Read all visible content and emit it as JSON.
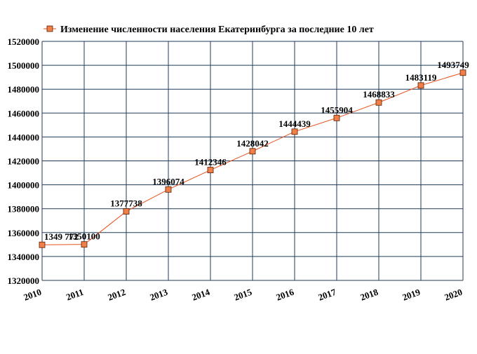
{
  "chart_data": {
    "type": "line",
    "legend": {
      "position": "top-left",
      "entries": [
        "Изменение численности населения Екатеринбурга за последние 10 лет"
      ]
    },
    "x": [
      "2010",
      "2011",
      "2012",
      "2013",
      "2014",
      "2015",
      "2016",
      "2017",
      "2018",
      "2019",
      "2020"
    ],
    "series": [
      {
        "name": "Изменение численности населения Екатеринбурга за последние 10 лет",
        "values": [
          1349772,
          1350100,
          1377738,
          1396074,
          1412346,
          1428042,
          1444439,
          1455904,
          1468833,
          1483119,
          1493749
        ],
        "labels": [
          "1349 772",
          "1350100",
          "1377738",
          "1396074",
          "1412346",
          "1428042",
          "1444439",
          "1455904",
          "1468833",
          "1483119",
          "1493749"
        ],
        "color": "#e8501c",
        "marker_fill": "#f07f4a",
        "marker_stroke": "#5a1e00"
      }
    ],
    "ylim": [
      1320000,
      1520000
    ],
    "yticks": [
      1320000,
      1340000,
      1360000,
      1380000,
      1400000,
      1420000,
      1440000,
      1460000,
      1480000,
      1500000,
      1520000
    ],
    "ytick_labels": [
      "1320000",
      "1340000",
      "1360000",
      "1380000",
      "1400000",
      "1420000",
      "1440000",
      "1460000",
      "1480000",
      "1500000",
      "1520000"
    ],
    "grid": true,
    "grid_color": "#1f3a5a"
  }
}
